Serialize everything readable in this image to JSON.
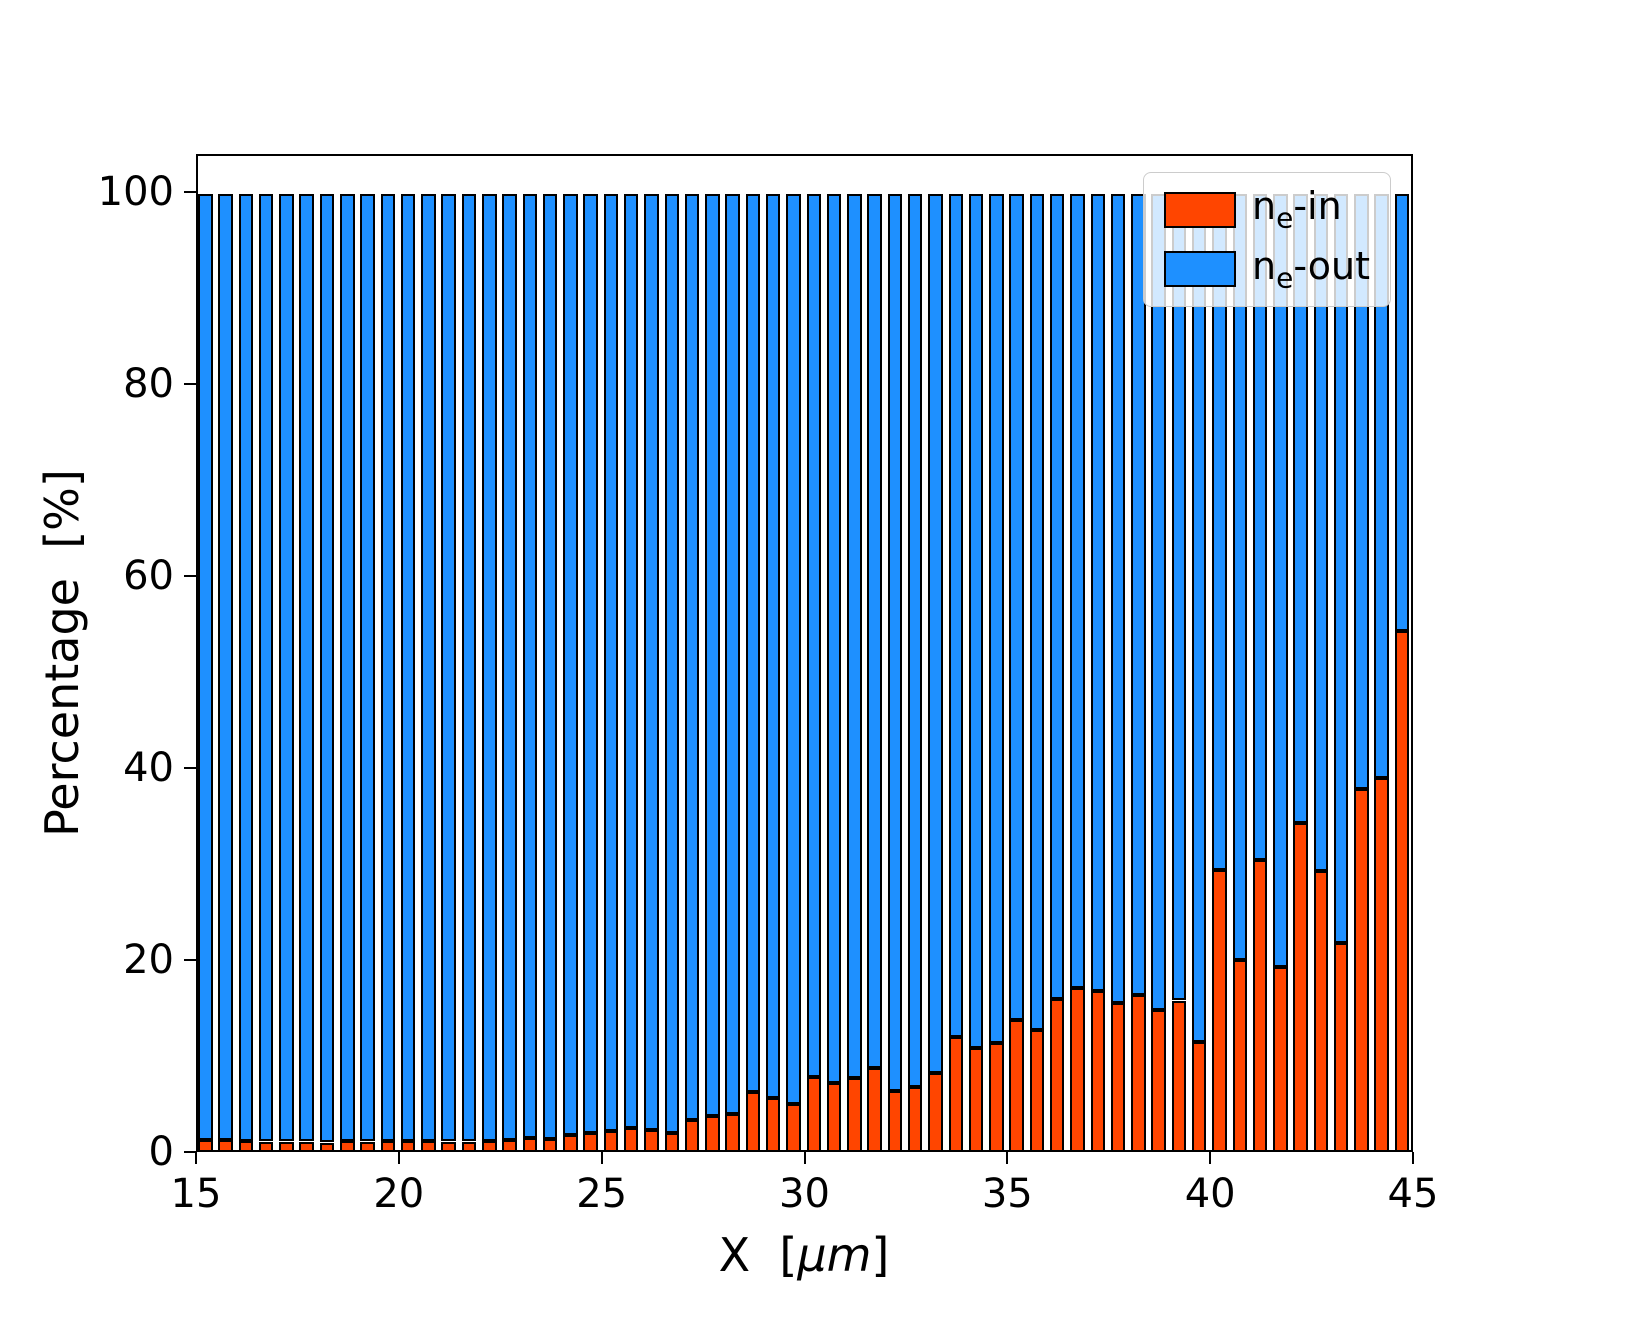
{
  "chart_data": {
    "type": "bar",
    "stacked": true,
    "title": "",
    "xlabel": "X  [μm]",
    "ylabel": "Percentage  [%]",
    "xlim": [
      15,
      45
    ],
    "ylim": [
      0,
      104
    ],
    "xticks": [
      15,
      20,
      25,
      30,
      35,
      40,
      45
    ],
    "yticks": [
      0,
      20,
      40,
      60,
      80,
      100
    ],
    "bar_width": 0.36,
    "edge_color": "#000000",
    "grid": false,
    "legend_position": "top-right",
    "x": [
      15.0,
      15.5,
      16.0,
      16.5,
      17.0,
      17.5,
      18.0,
      18.5,
      19.0,
      19.5,
      20.0,
      20.5,
      21.0,
      21.5,
      22.0,
      22.5,
      23.0,
      23.5,
      24.0,
      24.5,
      25.0,
      25.5,
      26.0,
      26.5,
      27.0,
      27.5,
      28.0,
      28.5,
      29.0,
      29.5,
      30.0,
      30.5,
      31.0,
      31.5,
      32.0,
      32.5,
      33.0,
      33.5,
      34.0,
      34.5,
      35.0,
      35.5,
      36.0,
      36.5,
      37.0,
      37.5,
      38.0,
      38.5,
      39.0,
      39.5,
      40.0,
      40.5,
      41.0,
      41.5,
      42.0,
      42.5,
      43.0,
      43.5,
      44.0,
      44.5
    ],
    "series": [
      {
        "name": "n_e-in",
        "color": "#ff4500",
        "values": [
          1.5,
          1.5,
          1.4,
          1.3,
          1.3,
          1.3,
          1.2,
          1.4,
          1.3,
          1.4,
          1.4,
          1.4,
          1.3,
          1.3,
          1.4,
          1.5,
          1.7,
          1.6,
          2.0,
          2.2,
          2.4,
          2.7,
          2.5,
          2.2,
          3.5,
          4.0,
          4.2,
          6.5,
          5.8,
          5.2,
          8.0,
          7.4,
          7.9,
          9.0,
          6.6,
          7.0,
          8.4,
          12.2,
          11.0,
          11.6,
          14.0,
          12.9,
          16.2,
          17.3,
          17.0,
          15.7,
          16.6,
          15.0,
          16.0,
          11.7,
          29.6,
          20.2,
          30.6,
          19.5,
          34.5,
          29.5,
          22.0,
          38.0,
          39.2,
          54.5
        ]
      },
      {
        "name": "n_e-out",
        "color": "#1e90ff",
        "values": [
          98.5,
          98.5,
          98.6,
          98.7,
          98.7,
          98.7,
          98.8,
          98.6,
          98.7,
          98.6,
          98.6,
          98.6,
          98.7,
          98.7,
          98.6,
          98.5,
          98.3,
          98.4,
          98.0,
          97.8,
          97.6,
          97.3,
          97.5,
          97.8,
          96.5,
          96.0,
          95.8,
          93.5,
          94.2,
          94.8,
          92.0,
          92.6,
          92.1,
          91.0,
          93.4,
          93.0,
          91.6,
          87.8,
          89.0,
          88.4,
          86.0,
          87.1,
          83.8,
          82.7,
          83.0,
          84.3,
          83.4,
          85.0,
          84.0,
          88.3,
          70.4,
          79.8,
          69.4,
          80.5,
          65.5,
          70.5,
          78.0,
          62.0,
          60.8,
          45.5
        ]
      }
    ]
  }
}
